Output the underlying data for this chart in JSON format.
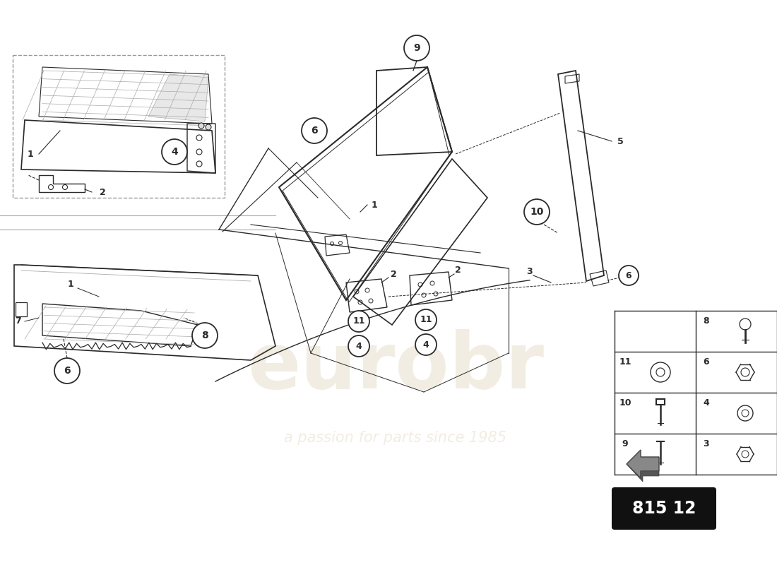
{
  "bg_color": "#ffffff",
  "line_color": "#2a2a2a",
  "light_line_color": "#aaaaaa",
  "circle_edge": "#111111",
  "badge_bg": "#111111",
  "badge_text": "#ffffff",
  "badge_number": "815 12",
  "watermark_text1": "eurobr",
  "watermark_text2": "a passion for parts since 1985",
  "watermark_color": "#d4c4a0",
  "table_items_left": [
    {
      "num": 8,
      "row": 0,
      "type": "bolt_pan"
    },
    {
      "num": 11,
      "row": 1,
      "type": "washer"
    },
    {
      "num": 10,
      "row": 2,
      "type": "bolt_hex"
    },
    {
      "num": 9,
      "row": 3,
      "type": "bolt_hex"
    }
  ],
  "table_items_right": [
    {
      "num": 6,
      "row": 1,
      "type": "nut_flange"
    },
    {
      "num": 4,
      "row": 2,
      "type": "nut_cap"
    },
    {
      "num": 3,
      "row": 3,
      "type": "nut_hex"
    }
  ]
}
